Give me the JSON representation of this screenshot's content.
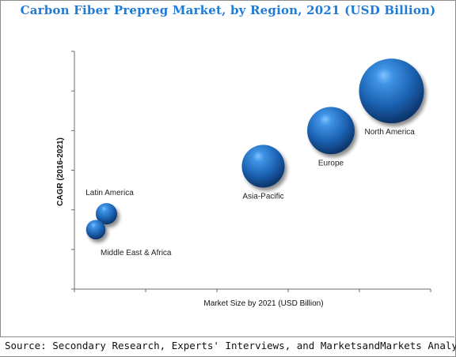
{
  "header": {
    "title": "Carbon Fiber Prepreg Market, by Region, 2021 (USD Billion)"
  },
  "footer": {
    "source": "Source: Secondary Research, Experts' Interviews, and MarketsandMarkets Analysis"
  },
  "chart_data": {
    "type": "scatter",
    "variant": "bubble",
    "title": "Carbon Fiber Prepreg Market, by Region, 2021 (USD Billion)",
    "xlabel": "Market Size by 2021 (USD Billion)",
    "ylabel": "CAGR (2016-2021)",
    "xlim": [
      0,
      10
    ],
    "ylim": [
      0,
      6
    ],
    "x_tick_count": 5,
    "y_tick_count": 6,
    "tick_labels_shown": false,
    "grid": false,
    "bubble_color": "#1f6fc4",
    "points": [
      {
        "label": "North America",
        "x": 8.9,
        "y": 5.0,
        "size": 1.0,
        "label_position": "below-right"
      },
      {
        "label": "Europe",
        "x": 7.2,
        "y": 4.0,
        "size": 0.73,
        "label_position": "below"
      },
      {
        "label": "Asia-Pacific",
        "x": 5.3,
        "y": 3.1,
        "size": 0.66,
        "label_position": "below"
      },
      {
        "label": "Latin America",
        "x": 0.9,
        "y": 1.9,
        "size": 0.33,
        "label_position": "above"
      },
      {
        "label": "Middle East & Africa",
        "x": 0.6,
        "y": 1.5,
        "size": 0.3,
        "label_position": "below-right"
      }
    ]
  }
}
